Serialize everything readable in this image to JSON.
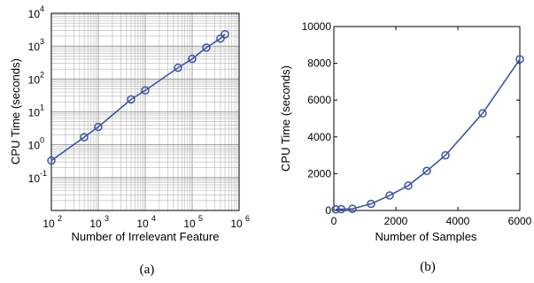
{
  "chart_data": [
    {
      "type": "line",
      "x_scale": "log",
      "y_scale": "log",
      "xlabel": "Number of Irrelevant Feature",
      "ylabel": "CPU Time (seconds)",
      "xlim": [
        100,
        1000000
      ],
      "ylim": [
        0.01,
        10000
      ],
      "x_ticks": [
        {
          "value": 100,
          "base": "10",
          "exp": "2"
        },
        {
          "value": 1000,
          "base": "10",
          "exp": "3"
        },
        {
          "value": 10000,
          "base": "10",
          "exp": "4"
        },
        {
          "value": 100000,
          "base": "10",
          "exp": "5"
        },
        {
          "value": 1000000,
          "base": "10",
          "exp": "6"
        }
      ],
      "y_ticks": [
        {
          "value": 0.1,
          "base": "10",
          "exp": "-1"
        },
        {
          "value": 1,
          "base": "10",
          "exp": "0"
        },
        {
          "value": 10,
          "base": "10",
          "exp": "1"
        },
        {
          "value": 100,
          "base": "10",
          "exp": "2"
        },
        {
          "value": 1000,
          "base": "10",
          "exp": "3"
        },
        {
          "value": 10000,
          "base": "10",
          "exp": "4"
        }
      ],
      "grid": true,
      "marker": "circle",
      "color": "#3a55a4",
      "x": [
        100,
        500,
        1000,
        5000,
        10000,
        50000,
        100000,
        200000,
        400000,
        500000
      ],
      "y": [
        0.33,
        1.7,
        3.5,
        24,
        45,
        220,
        410,
        900,
        1700,
        2300
      ],
      "caption": "(a)"
    },
    {
      "type": "line",
      "xlabel": "Number of Samples",
      "ylabel": "CPU Time (seconds)",
      "xlim": [
        0,
        6000
      ],
      "ylim": [
        0,
        10000
      ],
      "x_ticks": [
        "0",
        "2000",
        "4000",
        "6000"
      ],
      "y_ticks": [
        "0",
        "2000",
        "4000",
        "6000",
        "8000",
        "10000"
      ],
      "grid": false,
      "marker": "circle",
      "color": "#3a55a4",
      "x": [
        60,
        240,
        600,
        1200,
        1800,
        2400,
        3000,
        3600,
        4800,
        6000
      ],
      "y": [
        60,
        70,
        90,
        360,
        820,
        1350,
        2150,
        3000,
        5280,
        8220
      ],
      "caption": "(b)"
    }
  ]
}
